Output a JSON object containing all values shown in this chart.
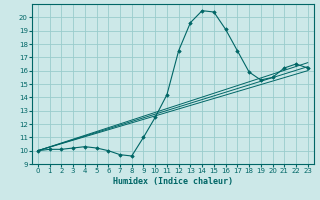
{
  "title": "",
  "xlabel": "Humidex (Indice chaleur)",
  "ylabel": "",
  "xlim": [
    -0.5,
    23.5
  ],
  "ylim": [
    9,
    21
  ],
  "yticks": [
    9,
    10,
    11,
    12,
    13,
    14,
    15,
    16,
    17,
    18,
    19,
    20
  ],
  "xticks": [
    0,
    1,
    2,
    3,
    4,
    5,
    6,
    7,
    8,
    9,
    10,
    11,
    12,
    13,
    14,
    15,
    16,
    17,
    18,
    19,
    20,
    21,
    22,
    23
  ],
  "bg_color": "#cce8e8",
  "grid_color": "#99cccc",
  "line_color": "#006666",
  "series1": {
    "x": [
      0,
      1,
      2,
      3,
      4,
      5,
      6,
      7,
      8,
      9,
      10,
      11,
      12,
      13,
      14,
      15,
      16,
      17,
      18,
      19,
      20,
      21,
      22,
      23
    ],
    "y": [
      10.0,
      10.1,
      10.1,
      10.2,
      10.3,
      10.2,
      10.0,
      9.7,
      9.6,
      11.0,
      12.5,
      14.2,
      17.5,
      19.6,
      20.5,
      20.4,
      19.1,
      17.5,
      15.9,
      15.3,
      15.5,
      16.2,
      16.5,
      16.2
    ]
  },
  "series2": {
    "x": [
      0,
      23
    ],
    "y": [
      10.0,
      16.0
    ]
  },
  "series3": {
    "x": [
      0,
      23
    ],
    "y": [
      10.0,
      16.3
    ]
  },
  "series4": {
    "x": [
      0,
      23
    ],
    "y": [
      10.0,
      16.6
    ]
  }
}
